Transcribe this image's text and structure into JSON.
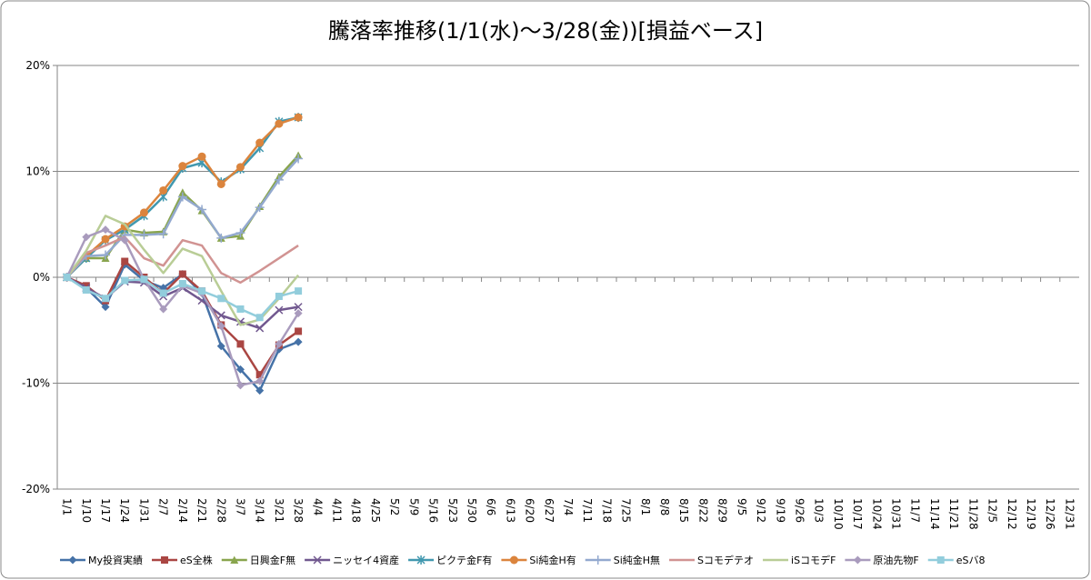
{
  "chart_data": {
    "type": "line",
    "title": "騰落率推移(1/1(水)～3/28(金))[損益ベース]",
    "categories": [
      "1/1",
      "1/10",
      "1/17",
      "1/24",
      "1/31",
      "2/7",
      "2/14",
      "2/21",
      "2/28",
      "3/7",
      "3/14",
      "3/21",
      "3/28",
      "4/4",
      "4/11",
      "4/18",
      "4/25",
      "5/2",
      "5/9",
      "5/16",
      "5/23",
      "5/30",
      "6/6",
      "6/13",
      "6/20",
      "6/27",
      "7/4",
      "7/11",
      "7/18",
      "7/25",
      "8/1",
      "8/8",
      "8/15",
      "8/22",
      "8/29",
      "9/5",
      "9/12",
      "9/19",
      "9/26",
      "10/3",
      "10/10",
      "10/17",
      "10/24",
      "10/31",
      "11/7",
      "11/14",
      "11/21",
      "11/28",
      "12/5",
      "12/12",
      "12/19",
      "12/26",
      "12/31"
    ],
    "ylim": [
      -20,
      20
    ],
    "yticks": [
      {
        "value": -20,
        "label": "-20%"
      },
      {
        "value": -10,
        "label": "-10%"
      },
      {
        "value": 0,
        "label": "0%"
      },
      {
        "value": 10,
        "label": "10%"
      },
      {
        "value": 20,
        "label": "20%"
      }
    ],
    "grid": true,
    "legend": "bottom",
    "series": [
      {
        "name": "My投資実績",
        "color": "#4572a7",
        "marker": "diamond",
        "values": [
          0,
          -1,
          -2.8,
          1.2,
          -0.3,
          -1,
          0.3,
          -1.5,
          -6.5,
          -8.7,
          -10.7,
          -6.8,
          -6.1,
          null,
          null,
          null,
          null,
          null,
          null,
          null,
          null,
          null,
          null,
          null,
          null,
          null,
          null,
          null,
          null,
          null,
          null,
          null,
          null,
          null,
          null,
          null,
          null,
          null,
          null,
          null,
          null,
          null,
          null,
          null,
          null,
          null,
          null,
          null,
          null,
          null,
          null,
          null,
          null
        ]
      },
      {
        "name": "eS全株",
        "color": "#aa4643",
        "marker": "square",
        "values": [
          0,
          -0.8,
          -2.2,
          1.5,
          0,
          -1.5,
          0.3,
          -1.3,
          -4.5,
          -6.3,
          -9.2,
          -6.4,
          -5.1,
          null,
          null,
          null,
          null,
          null,
          null,
          null,
          null,
          null,
          null,
          null,
          null,
          null,
          null,
          null,
          null,
          null,
          null,
          null,
          null,
          null,
          null,
          null,
          null,
          null,
          null,
          null,
          null,
          null,
          null,
          null,
          null,
          null,
          null,
          null,
          null,
          null,
          null,
          null,
          null
        ]
      },
      {
        "name": "日興金F無",
        "color": "#89a54e",
        "marker": "triangle",
        "values": [
          0,
          1.8,
          1.8,
          4.5,
          4.2,
          4.3,
          8,
          6.3,
          3.7,
          3.9,
          6.7,
          9.5,
          11.5,
          null,
          null,
          null,
          null,
          null,
          null,
          null,
          null,
          null,
          null,
          null,
          null,
          null,
          null,
          null,
          null,
          null,
          null,
          null,
          null,
          null,
          null,
          null,
          null,
          null,
          null,
          null,
          null,
          null,
          null,
          null,
          null,
          null,
          null,
          null,
          null,
          null,
          null,
          null,
          null
        ]
      },
      {
        "name": "ニッセイ4資産",
        "color": "#71588f",
        "marker": "x",
        "values": [
          0,
          -1,
          -2,
          -0.4,
          -0.5,
          -1.8,
          -1,
          -2.2,
          -3.6,
          -4.2,
          -4.8,
          -3.1,
          -2.8,
          null,
          null,
          null,
          null,
          null,
          null,
          null,
          null,
          null,
          null,
          null,
          null,
          null,
          null,
          null,
          null,
          null,
          null,
          null,
          null,
          null,
          null,
          null,
          null,
          null,
          null,
          null,
          null,
          null,
          null,
          null,
          null,
          null,
          null,
          null,
          null,
          null,
          null,
          null,
          null
        ]
      },
      {
        "name": "ピクテ金F有",
        "color": "#4198af",
        "marker": "star",
        "values": [
          0,
          1.8,
          3.5,
          4.5,
          5.8,
          7.6,
          10.3,
          10.8,
          9,
          10.2,
          12.2,
          14.7,
          15.1,
          null,
          null,
          null,
          null,
          null,
          null,
          null,
          null,
          null,
          null,
          null,
          null,
          null,
          null,
          null,
          null,
          null,
          null,
          null,
          null,
          null,
          null,
          null,
          null,
          null,
          null,
          null,
          null,
          null,
          null,
          null,
          null,
          null,
          null,
          null,
          null,
          null,
          null,
          null,
          null
        ]
      },
      {
        "name": "Si純金H有",
        "color": "#db843d",
        "marker": "circle",
        "values": [
          0,
          2,
          3.6,
          4.8,
          6.1,
          8.2,
          10.5,
          11.4,
          8.8,
          10.4,
          12.7,
          14.5,
          15.1,
          null,
          null,
          null,
          null,
          null,
          null,
          null,
          null,
          null,
          null,
          null,
          null,
          null,
          null,
          null,
          null,
          null,
          null,
          null,
          null,
          null,
          null,
          null,
          null,
          null,
          null,
          null,
          null,
          null,
          null,
          null,
          null,
          null,
          null,
          null,
          null,
          null,
          null,
          null,
          null
        ]
      },
      {
        "name": "Si純金H無",
        "color": "#93a9cf",
        "marker": "plus",
        "values": [
          0,
          2,
          2.1,
          4,
          4,
          4.1,
          7.6,
          6.4,
          3.7,
          4.2,
          6.6,
          9.2,
          11.2,
          null,
          null,
          null,
          null,
          null,
          null,
          null,
          null,
          null,
          null,
          null,
          null,
          null,
          null,
          null,
          null,
          null,
          null,
          null,
          null,
          null,
          null,
          null,
          null,
          null,
          null,
          null,
          null,
          null,
          null,
          null,
          null,
          null,
          null,
          null,
          null,
          null,
          null,
          null,
          null
        ]
      },
      {
        "name": "Sコモデテオ",
        "color": "#d19392",
        "marker": "none",
        "values": [
          0,
          2.3,
          3,
          3.8,
          1.8,
          1.1,
          3.5,
          3,
          0.4,
          -0.5,
          0.6,
          1.8,
          3,
          null,
          null,
          null,
          null,
          null,
          null,
          null,
          null,
          null,
          null,
          null,
          null,
          null,
          null,
          null,
          null,
          null,
          null,
          null,
          null,
          null,
          null,
          null,
          null,
          null,
          null,
          null,
          null,
          null,
          null,
          null,
          null,
          null,
          null,
          null,
          null,
          null,
          null,
          null,
          null
        ]
      },
      {
        "name": "iSコモデF",
        "color": "#b9cd96",
        "marker": "none",
        "values": [
          0,
          2.5,
          5.8,
          5,
          2.6,
          0.4,
          2.7,
          2,
          -1.3,
          -4.5,
          -4,
          -2,
          0.2,
          null,
          null,
          null,
          null,
          null,
          null,
          null,
          null,
          null,
          null,
          null,
          null,
          null,
          null,
          null,
          null,
          null,
          null,
          null,
          null,
          null,
          null,
          null,
          null,
          null,
          null,
          null,
          null,
          null,
          null,
          null,
          null,
          null,
          null,
          null,
          null,
          null,
          null,
          null,
          null
        ]
      },
      {
        "name": "原油先物F",
        "color": "#a99bbd",
        "marker": "diamond",
        "values": [
          0,
          3.8,
          4.5,
          3.5,
          -0.2,
          -3,
          -0.8,
          -1.5,
          -4.6,
          -10.2,
          -9.8,
          -6.3,
          -3.4,
          null,
          null,
          null,
          null,
          null,
          null,
          null,
          null,
          null,
          null,
          null,
          null,
          null,
          null,
          null,
          null,
          null,
          null,
          null,
          null,
          null,
          null,
          null,
          null,
          null,
          null,
          null,
          null,
          null,
          null,
          null,
          null,
          null,
          null,
          null,
          null,
          null,
          null,
          null,
          null
        ]
      },
      {
        "name": "eSバ8",
        "color": "#92cddc",
        "marker": "square",
        "values": [
          0,
          -1.2,
          -2,
          -0.3,
          -0.2,
          -1.5,
          -0.6,
          -1.3,
          -2,
          -3,
          -3.8,
          -1.8,
          -1.3,
          null,
          null,
          null,
          null,
          null,
          null,
          null,
          null,
          null,
          null,
          null,
          null,
          null,
          null,
          null,
          null,
          null,
          null,
          null,
          null,
          null,
          null,
          null,
          null,
          null,
          null,
          null,
          null,
          null,
          null,
          null,
          null,
          null,
          null,
          null,
          null,
          null,
          null,
          null,
          null
        ]
      }
    ]
  }
}
